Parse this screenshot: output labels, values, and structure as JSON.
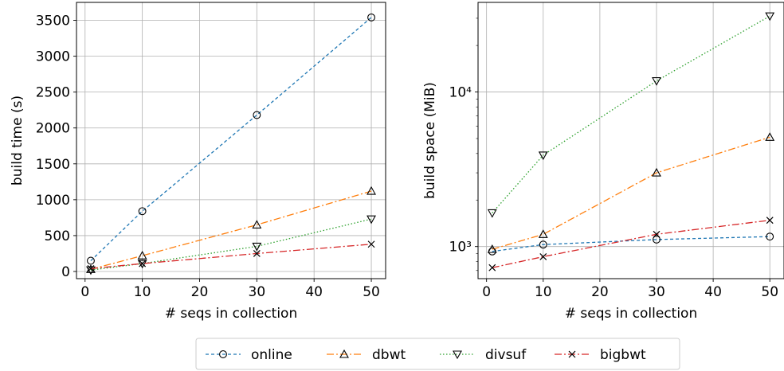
{
  "chart_data": [
    {
      "type": "line",
      "xlabel": "# seqs in collection",
      "ylabel": "build time (s)",
      "yscale": "linear",
      "xlim": [
        -1.5,
        52.5
      ],
      "ylim": [
        -100,
        3750
      ],
      "xticks": [
        0,
        10,
        20,
        30,
        40,
        50
      ],
      "xtick_labels": [
        "0",
        "10",
        "20",
        "30",
        "40",
        "50"
      ],
      "yticks": [
        0,
        500,
        1000,
        1500,
        2000,
        2500,
        3000,
        3500
      ],
      "ytick_labels": [
        "0",
        "500",
        "1000",
        "1500",
        "2000",
        "2500",
        "3000",
        "3500"
      ],
      "grid": true,
      "x": [
        1,
        10,
        30,
        50
      ],
      "series": [
        {
          "name": "online",
          "values": [
            150,
            840,
            2180,
            3540
          ]
        },
        {
          "name": "dbwt",
          "values": [
            30,
            220,
            650,
            1120
          ]
        },
        {
          "name": "divsuf",
          "values": [
            20,
            110,
            350,
            730
          ]
        },
        {
          "name": "bigbwt",
          "values": [
            40,
            110,
            250,
            380
          ]
        }
      ]
    },
    {
      "type": "line",
      "xlabel": "# seqs in collection",
      "ylabel": "build space (MiB)",
      "yscale": "log",
      "xlim": [
        -1.5,
        52.5
      ],
      "ylim": [
        620,
        38000
      ],
      "xticks": [
        0,
        10,
        20,
        30,
        40,
        50
      ],
      "xtick_labels": [
        "0",
        "10",
        "20",
        "30",
        "40",
        "50"
      ],
      "yticks": [
        1000,
        10000
      ],
      "ytick_labels": [
        "10³",
        "10⁴"
      ],
      "grid": true,
      "x": [
        1,
        10,
        30,
        50
      ],
      "series": [
        {
          "name": "online",
          "values": [
            930,
            1030,
            1110,
            1160
          ]
        },
        {
          "name": "dbwt",
          "values": [
            960,
            1200,
            3000,
            5100
          ]
        },
        {
          "name": "divsuf",
          "values": [
            1650,
            3900,
            11800,
            31000
          ]
        },
        {
          "name": "bigbwt",
          "values": [
            730,
            860,
            1200,
            1480
          ]
        }
      ]
    }
  ],
  "styles": {
    "online": {
      "color": "#1f77b4",
      "dash": "4,3",
      "marker": "circle"
    },
    "dbwt": {
      "color": "#ff7f0e",
      "dash": "9,3,2,3",
      "marker": "triangle-up"
    },
    "divsuf": {
      "color": "#2ca02c",
      "dash": "1.5,2.5",
      "marker": "triangle-down"
    },
    "bigbwt": {
      "color": "#d62728",
      "dash": "9,3,2,3",
      "marker": "x"
    }
  },
  "legend": {
    "placement": "bottom-center",
    "entries": [
      "online",
      "dbwt",
      "divsuf",
      "bigbwt"
    ]
  }
}
